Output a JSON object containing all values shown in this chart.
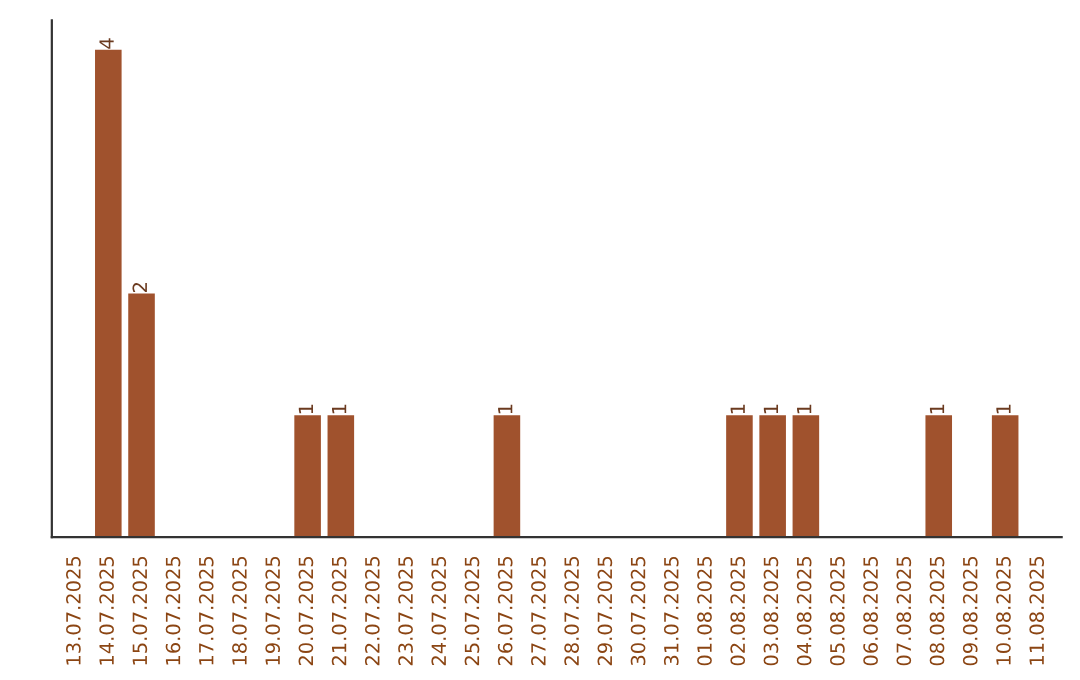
{
  "chart_data": {
    "type": "bar",
    "categories": [
      "13.07.2025",
      "14.07.2025",
      "15.07.2025",
      "16.07.2025",
      "17.07.2025",
      "18.07.2025",
      "19.07.2025",
      "20.07.2025",
      "21.07.2025",
      "22.07.2025",
      "23.07.2025",
      "24.07.2025",
      "25.07.2025",
      "26.07.2025",
      "27.07.2025",
      "28.07.2025",
      "29.07.2025",
      "30.07.2025",
      "31.07.2025",
      "01.08.2025",
      "02.08.2025",
      "03.08.2025",
      "04.08.2025",
      "05.08.2025",
      "06.08.2025",
      "07.08.2025",
      "08.08.2025",
      "09.08.2025",
      "10.08.2025",
      "11.08.2025"
    ],
    "values": [
      0,
      4,
      2,
      0,
      0,
      0,
      0,
      1,
      1,
      0,
      0,
      0,
      0,
      1,
      0,
      0,
      0,
      0,
      0,
      0,
      1,
      1,
      1,
      0,
      0,
      0,
      1,
      0,
      1,
      0
    ],
    "value_labels": [
      null,
      "4",
      "2",
      null,
      null,
      null,
      null,
      "1",
      "1",
      null,
      null,
      null,
      null,
      "1",
      null,
      null,
      null,
      null,
      null,
      null,
      "1",
      "1",
      "1",
      null,
      null,
      null,
      "1",
      null,
      "1",
      null
    ],
    "color": "#a0522d",
    "grid": false,
    "legend": false,
    "tick_labels": "x"
  }
}
